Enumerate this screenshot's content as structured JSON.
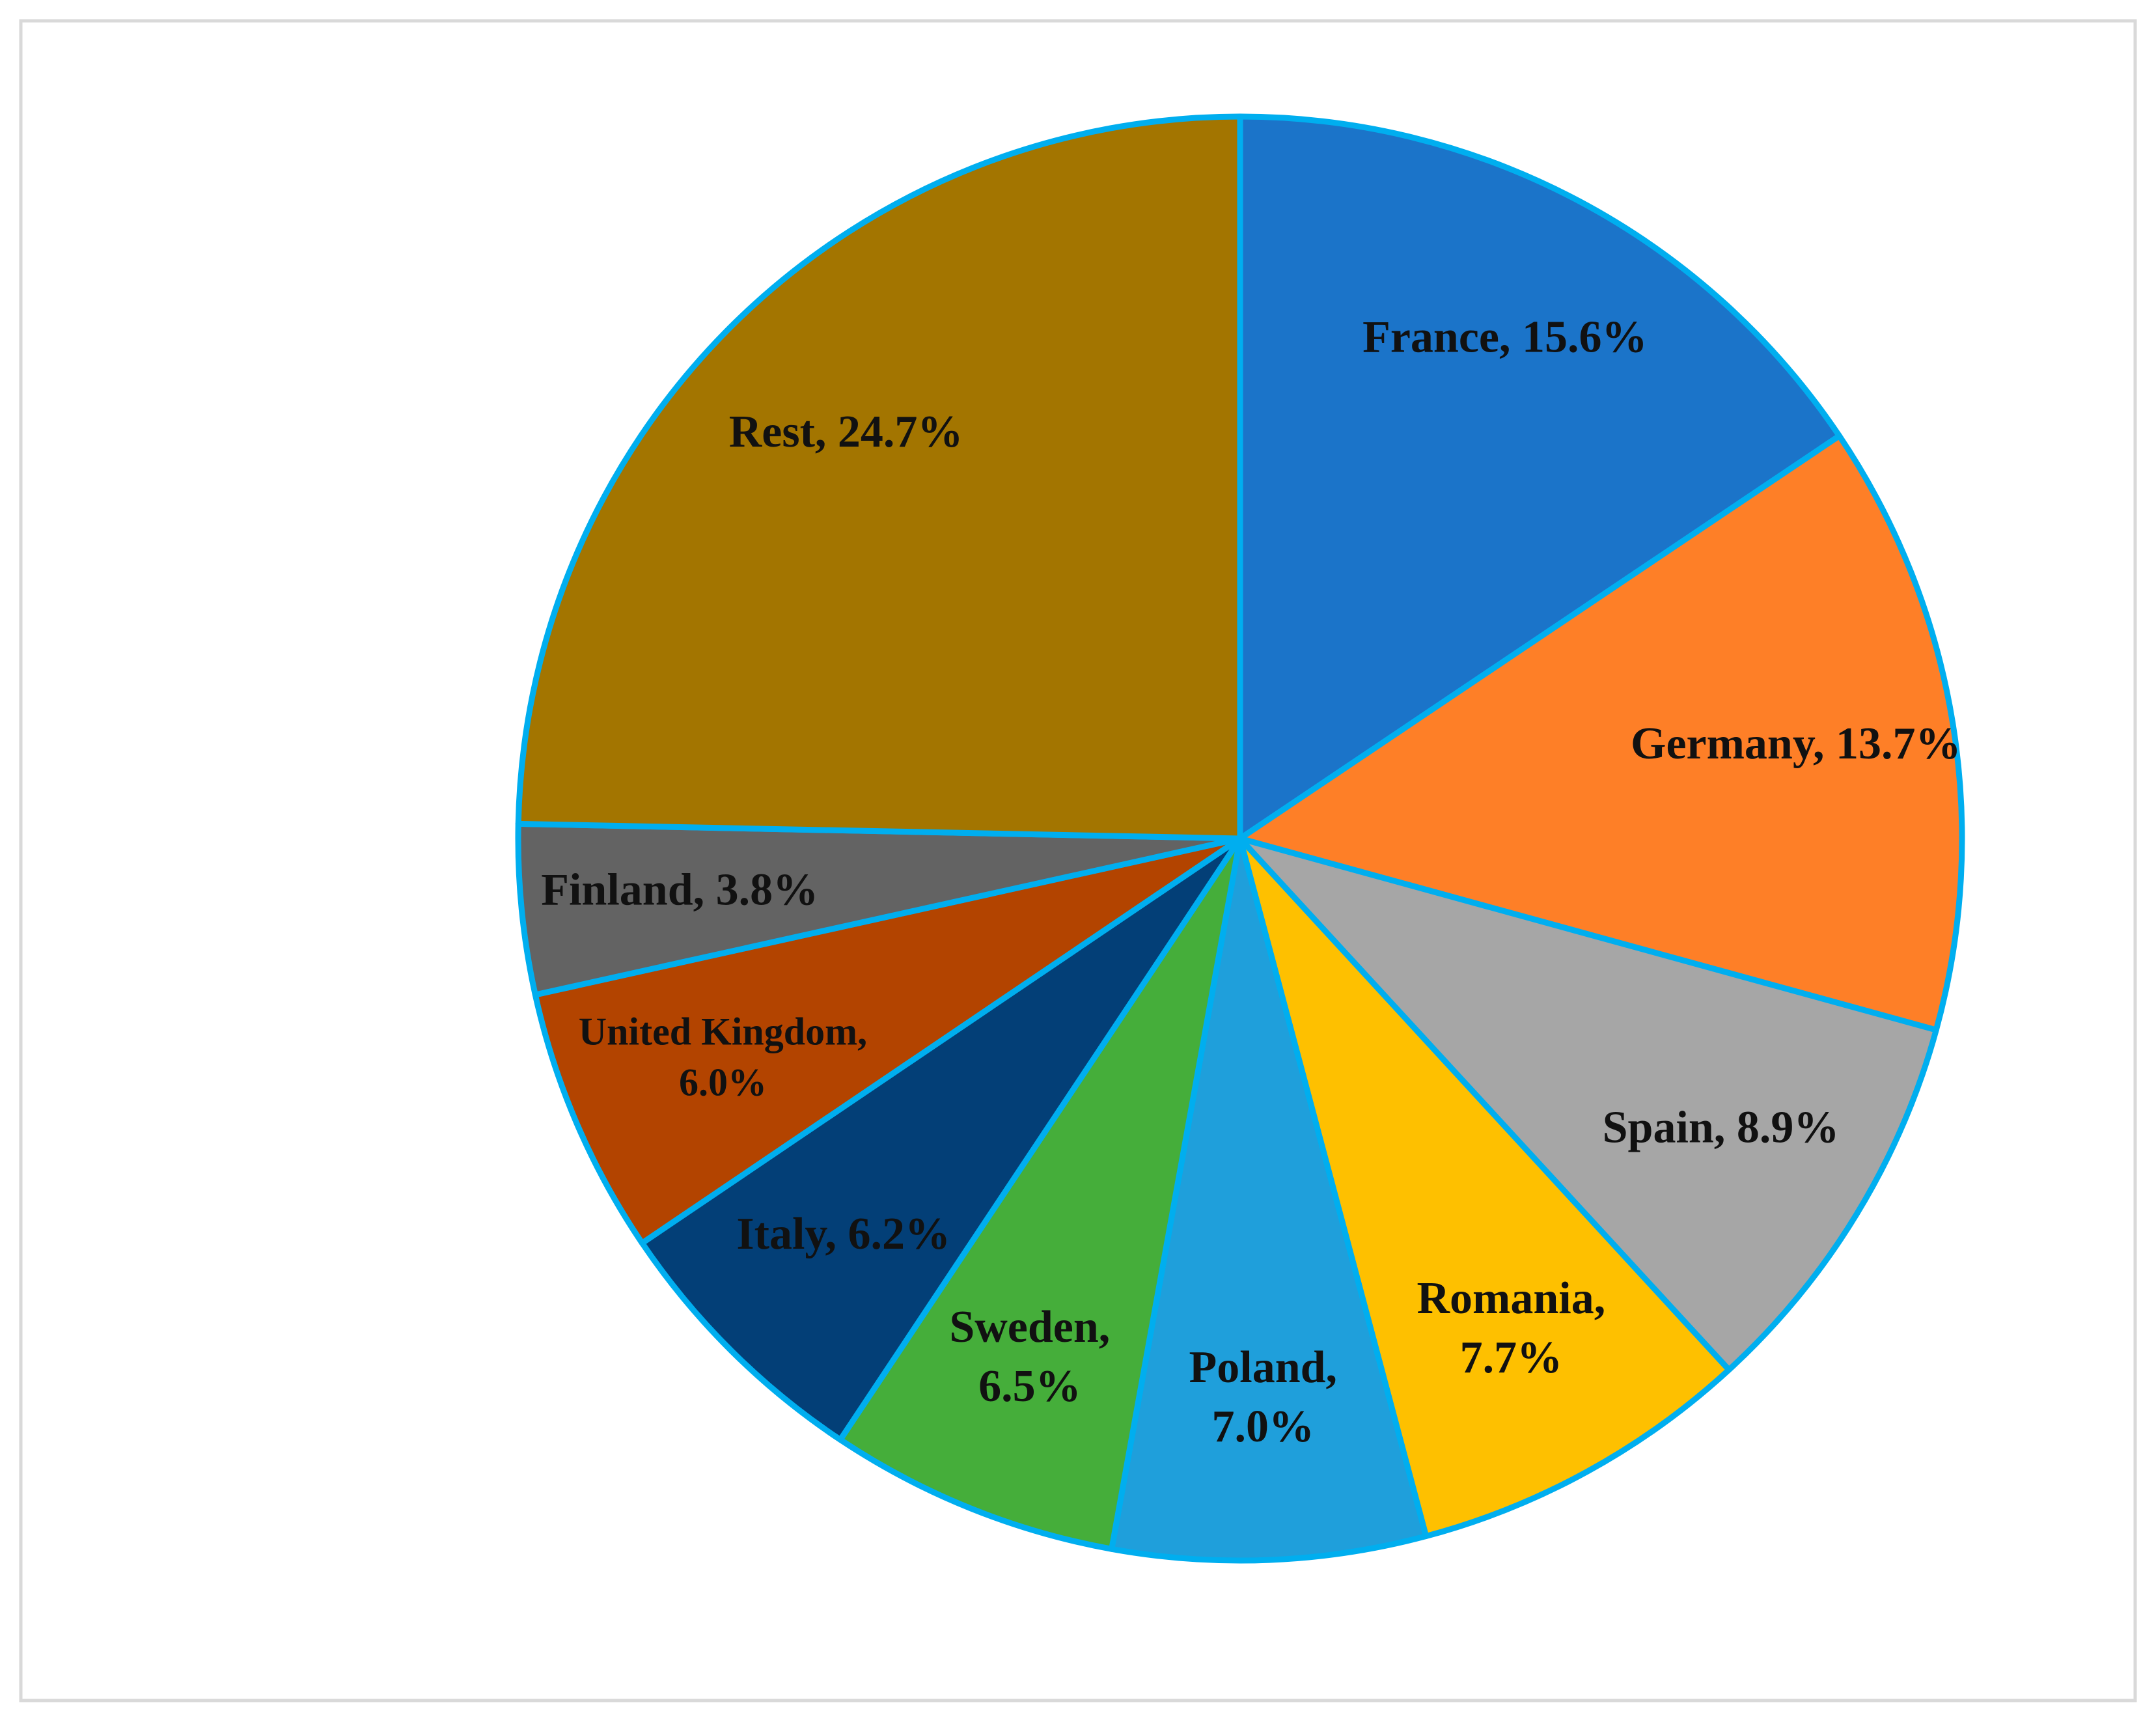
{
  "chart_data": {
    "type": "pie",
    "values": [
      15.6,
      13.7,
      8.9,
      7.7,
      7.0,
      6.5,
      6.2,
      6.0,
      3.8,
      24.7
    ],
    "value_labels": [
      [
        "France, 15.6%"
      ],
      [
        "Germany, 13.7%"
      ],
      [
        "Spain, 8.9%"
      ],
      [
        "Romania,",
        "7.7%"
      ],
      [
        "Poland,",
        "7.0%"
      ],
      [
        "Sweden,",
        "6.5%"
      ],
      [
        "Italy, 6.2%"
      ],
      [
        "United Kingdom,",
        "6.0%"
      ],
      [
        "Finland, 3.8%"
      ],
      [
        "Rest, 24.7%"
      ]
    ],
    "colors": [
      "#1b74c9",
      "#fe7f27",
      "#a6a6a6",
      "#fec000",
      "#1f9fdb",
      "#45ae3a",
      "#033f77",
      "#b34400",
      "#636363",
      "#a37500"
    ],
    "edge_color": "#00aeef"
  }
}
